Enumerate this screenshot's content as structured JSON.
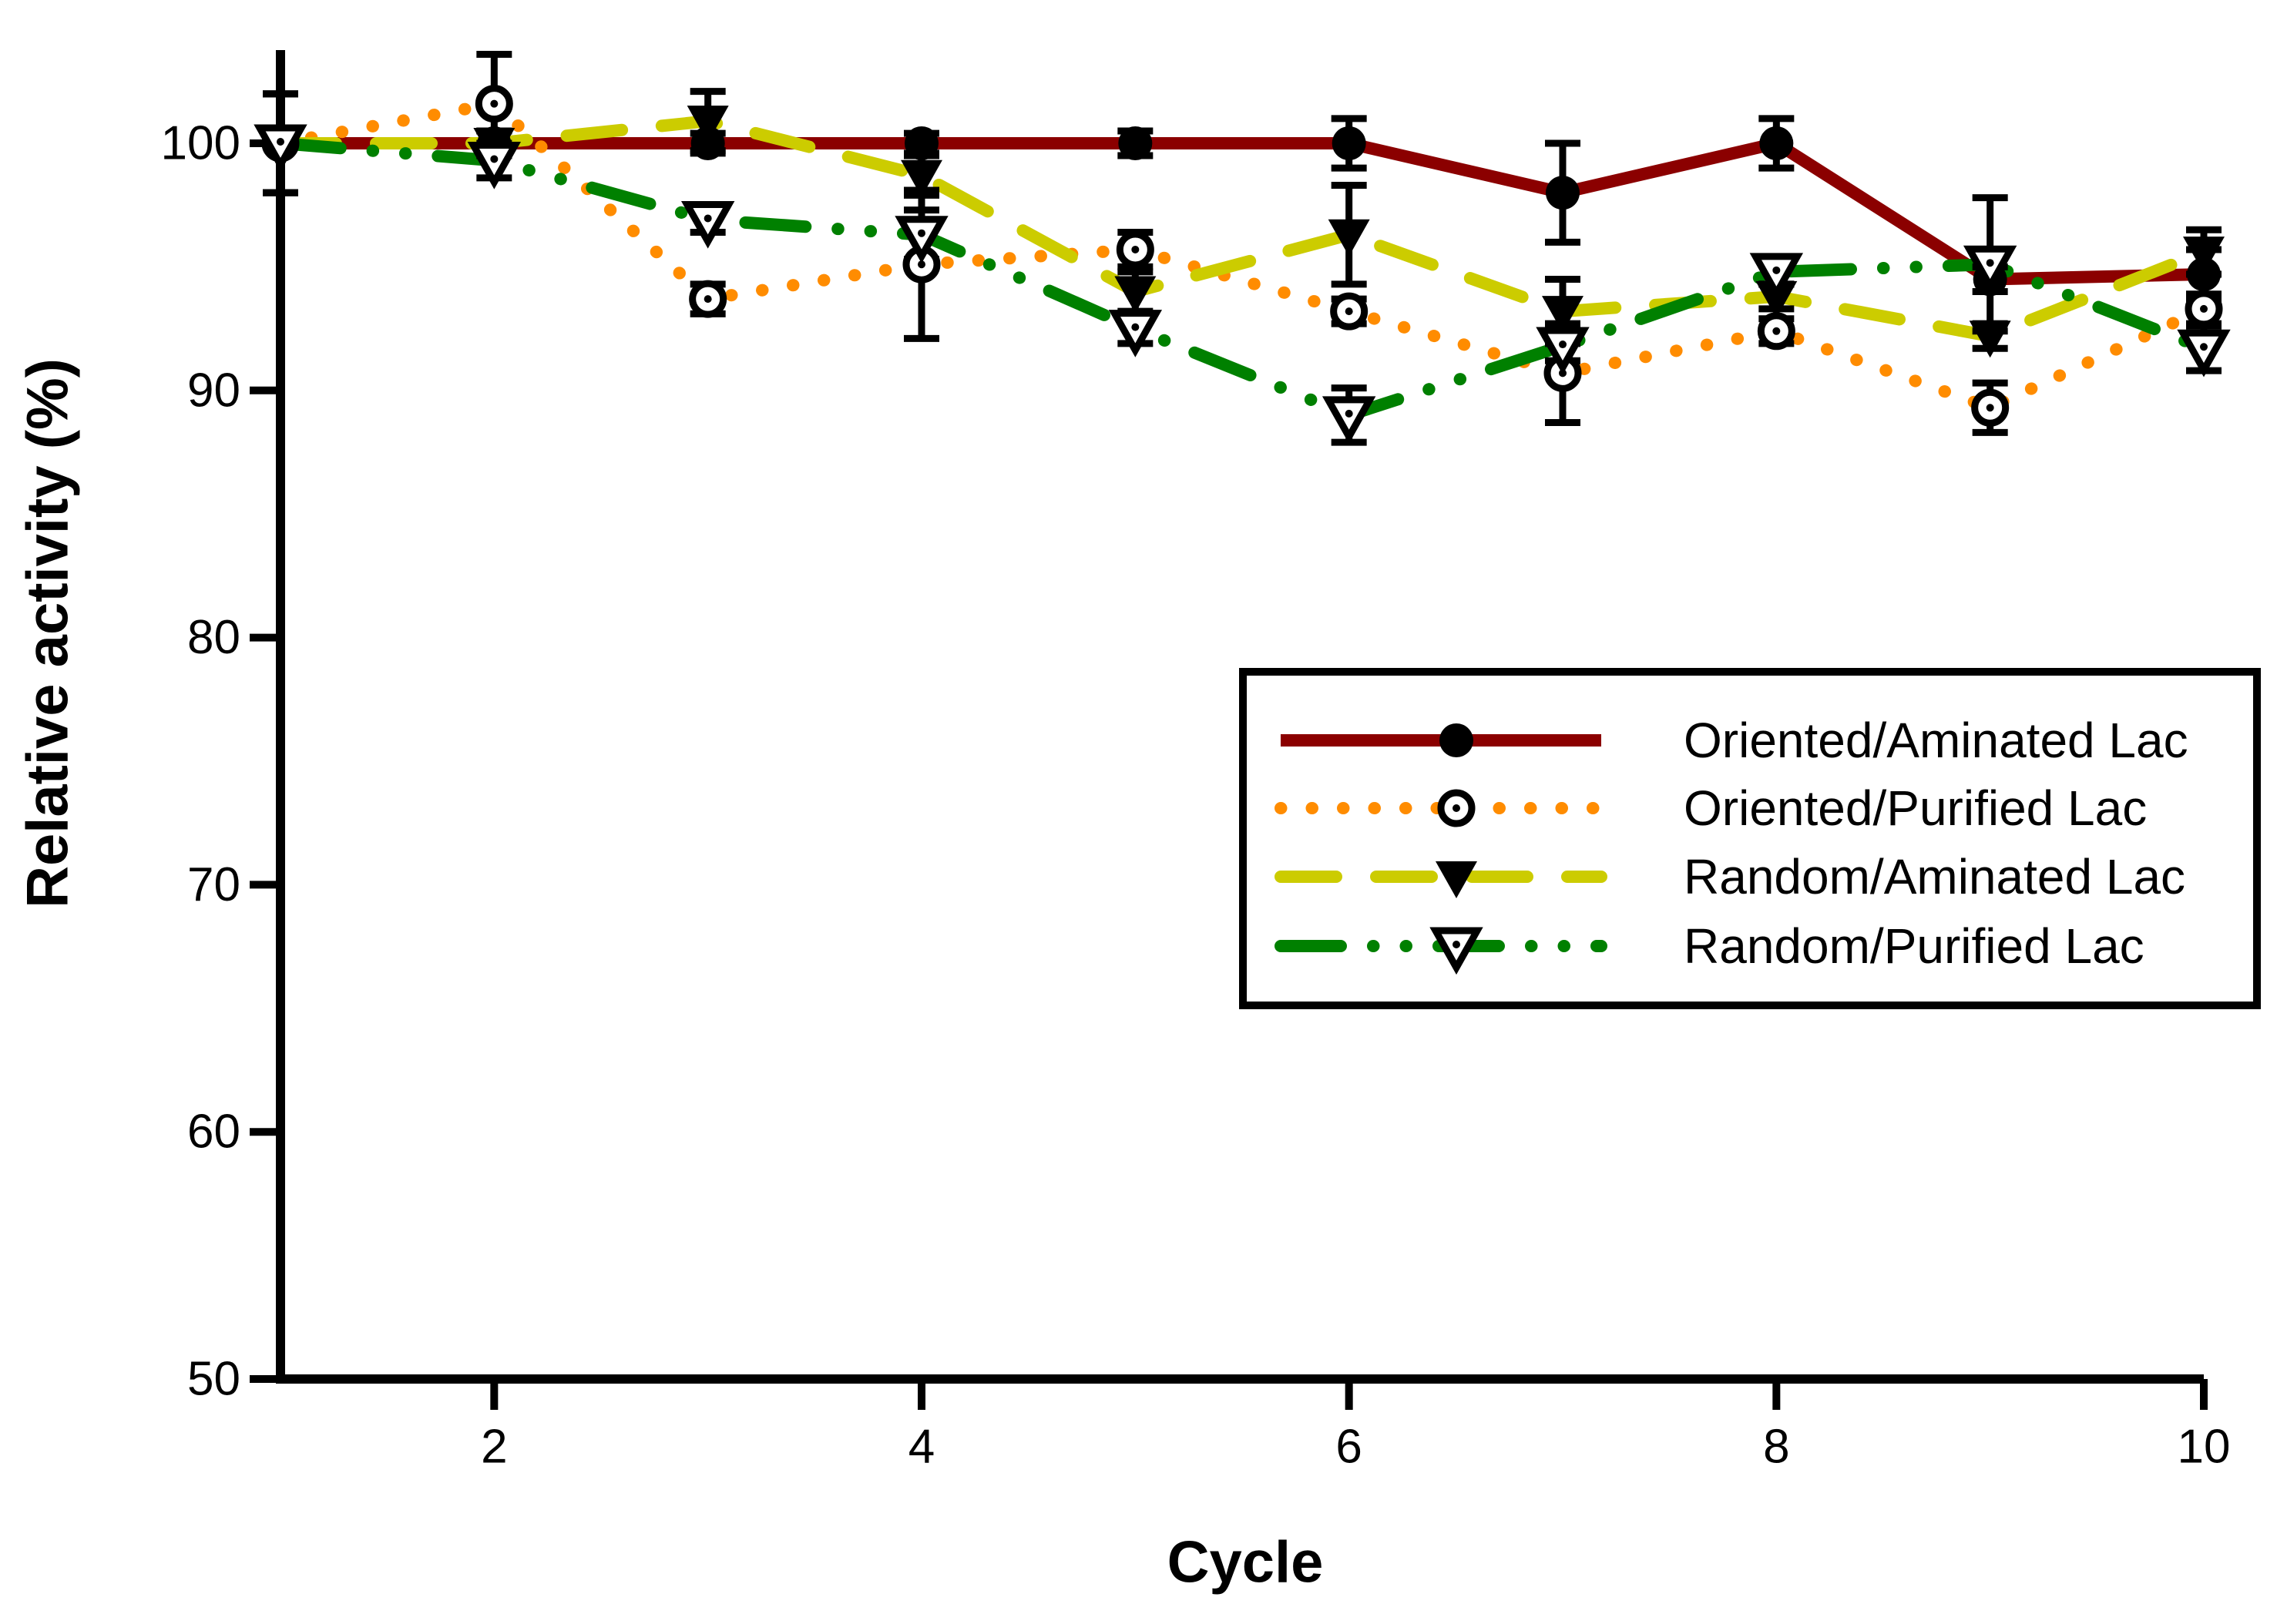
{
  "chart_data": {
    "type": "line",
    "title": "",
    "xlabel": "Cycle",
    "ylabel": "Relative activity (%)",
    "x": [
      1,
      2,
      3,
      4,
      5,
      6,
      7,
      8,
      9,
      10
    ],
    "xlim": [
      1,
      10
    ],
    "ylim": [
      50,
      103.8
    ],
    "x_ticks": [
      2,
      4,
      6,
      8,
      10
    ],
    "y_ticks": [
      50,
      60,
      70,
      80,
      90,
      100
    ],
    "grid": false,
    "error_bar_color": "#000000",
    "legend_position": "inside-lower-right",
    "series": [
      {
        "name": "Oriented/Aminated Lac",
        "color": "#8B0000",
        "line_style": "solid",
        "marker": "filled-circle",
        "values": [
          100,
          100,
          100,
          100,
          100,
          100,
          98.0,
          100,
          94.5,
          94.7
        ],
        "errors": [
          2,
          0.5,
          0.4,
          0.4,
          0.5,
          1,
          2,
          1,
          0.5,
          1
        ]
      },
      {
        "name": "Oriented/Purified Lac",
        "color": "#FF8C00",
        "line_style": "dotted",
        "marker": "open-circle",
        "values": [
          100,
          101.6,
          93.7,
          95.1,
          95.7,
          93.2,
          90.7,
          92.4,
          89.3,
          93.3
        ],
        "errors": [
          2,
          2,
          0.6,
          3,
          0.7,
          0.5,
          2,
          0.5,
          1,
          0.6
        ]
      },
      {
        "name": "Random/Aminated Lac",
        "color": "#CCCC00",
        "line_style": "dashed",
        "marker": "filled-triangle-down",
        "values": [
          100,
          100,
          100.9,
          98.7,
          94.0,
          96.3,
          93.2,
          93.8,
          92.2,
          95.6
        ],
        "errors": [
          2,
          0.5,
          1.2,
          0.8,
          0.8,
          2,
          1.3,
          0.5,
          0.5,
          0.9
        ]
      },
      {
        "name": "Random/Purified Lac",
        "color": "#008000",
        "line_style": "dash-dot-dot",
        "marker": "open-triangle-down",
        "values": [
          100,
          99.3,
          96.9,
          96.3,
          92.5,
          89.0,
          91.8,
          94.8,
          95.1,
          91.7
        ],
        "errors": [
          2,
          0.7,
          0.5,
          1,
          0.6,
          1.1,
          0.6,
          0.5,
          2.7,
          0.9
        ]
      }
    ]
  }
}
